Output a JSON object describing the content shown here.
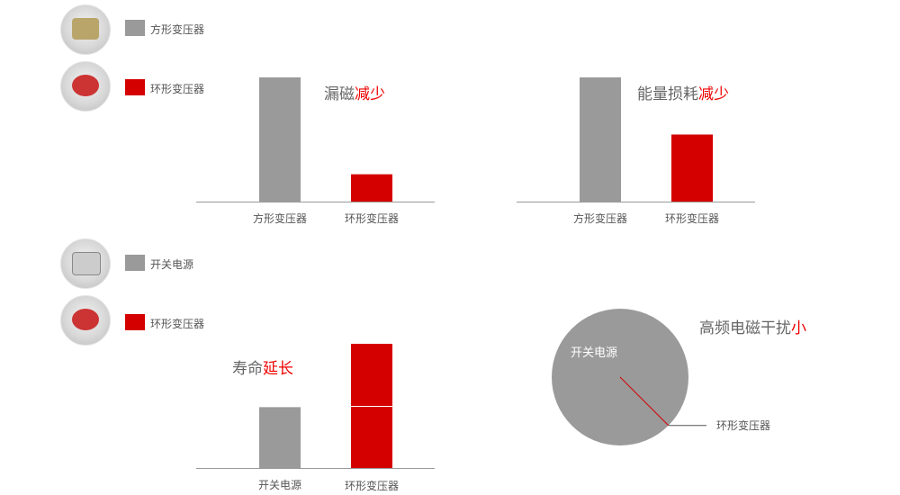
{
  "colors": {
    "gray": "#9a9a9a",
    "red": "#d40000",
    "highlight": "#ee0000"
  },
  "legends": [
    {
      "items": [
        {
          "label": "方形变压器",
          "color": "#9a9a9a",
          "icon": "square-transformer-photo"
        },
        {
          "label": "环形变压器",
          "color": "#d40000",
          "icon": "toroidal-transformer-photo"
        }
      ]
    },
    {
      "items": [
        {
          "label": "开关电源",
          "color": "#9a9a9a",
          "icon": "switching-power-supply-photo"
        },
        {
          "label": "环形变压器",
          "color": "#d40000",
          "icon": "toroidal-transformer-photo"
        }
      ]
    }
  ],
  "chart_data": [
    {
      "type": "bar",
      "title_main": "漏磁",
      "title_hl": "减少",
      "categories": [
        "方形变压器",
        "环形变压器"
      ],
      "values": [
        100,
        22
      ],
      "colors": [
        "#9a9a9a",
        "#d40000"
      ]
    },
    {
      "type": "bar",
      "title_main": "能量损耗",
      "title_hl": "减少",
      "categories": [
        "方形变压器",
        "环形变压器"
      ],
      "values": [
        100,
        54
      ],
      "colors": [
        "#9a9a9a",
        "#d40000"
      ]
    },
    {
      "type": "bar",
      "title_main": "寿命",
      "title_hl": "延长",
      "categories": [
        "开关电源",
        "环形变压器"
      ],
      "values": [
        49,
        100
      ],
      "stacks": [
        [
          49
        ],
        [
          50,
          50
        ]
      ],
      "colors": [
        "#9a9a9a",
        "#d40000"
      ]
    },
    {
      "type": "pie",
      "title_main": "高频电磁干扰",
      "title_hl": "小",
      "slices": [
        {
          "label": "开关电源",
          "value": 99.8,
          "color": "#9a9a9a"
        },
        {
          "label": "环形变压器",
          "value": 0.2,
          "color": "#d40000"
        }
      ]
    }
  ]
}
